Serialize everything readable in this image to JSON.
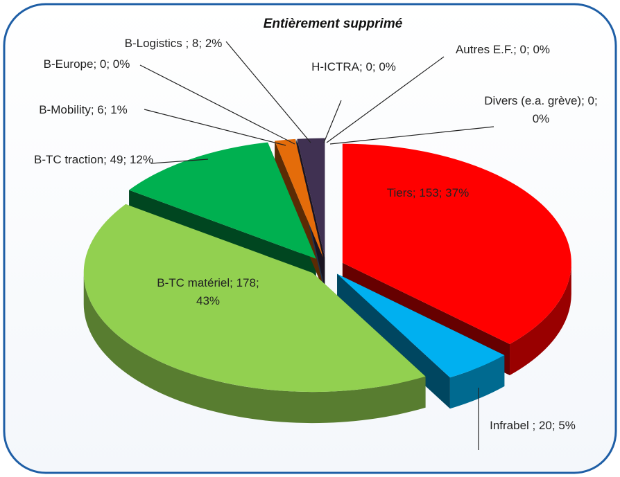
{
  "chart_data": {
    "type": "pie",
    "title": "Entièrement supprimé",
    "categories": [
      "Tiers",
      "Infrabel",
      "B-TC matériel",
      "B-TC traction",
      "B-Mobility",
      "B-Europe",
      "B-Logistics",
      "H-ICTRA",
      "Autres E.F.",
      "Divers (e.a. grève)"
    ],
    "values": [
      153,
      20,
      178,
      49,
      6,
      0,
      8,
      0,
      0,
      0
    ],
    "percentages": [
      37,
      5,
      43,
      12,
      1,
      0,
      2,
      0,
      0,
      0
    ],
    "value_labels": [
      "Tiers; 153; 37%",
      "Infrabel ; 20; 5%",
      "B-TC matériel; 178; 43%",
      "B-TC traction; 49; 12%",
      "B-Mobility; 6; 1%",
      "B-Europe; 0; 0%",
      "B-Logistics ; 8; 2%",
      "H-ICTRA; 0; 0%",
      "Autres E.F.; 0; 0%",
      "Divers (e.a. grève); 0; 0%"
    ],
    "colors": [
      "#ff0000",
      "#00b0f0",
      "#92d050",
      "#00b050",
      "#e46c0a",
      "#4f81bd",
      "#403152",
      "#8064a2",
      "#4bacc6",
      "#f79646"
    ]
  }
}
